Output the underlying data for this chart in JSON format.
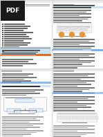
{
  "bg_color": "#ffffff",
  "page_bg": "#ffffff",
  "pdf_icon_bg": "#1a1a1a",
  "pdf_text_color": "#ffffff",
  "header_bar_color": "#e8e8e8",
  "header_bar_color2": "#d0d0d0",
  "text_dark": "#333333",
  "text_med": "#555555",
  "text_light": "#888888",
  "text_vlight": "#aaaaaa",
  "section_blue_bg": "#cce5f5",
  "section_red_bg": "#c0392b",
  "section_orange_bg": "#e8944a",
  "blue_highlight": "#4a90d9",
  "table_bg": "#f0f0f0",
  "table_border": "#cccccc",
  "orange1": "#e8943a",
  "orange2": "#f0a030",
  "orange3": "#e89030",
  "divider": "#cccccc",
  "border": "#bbbbbb"
}
